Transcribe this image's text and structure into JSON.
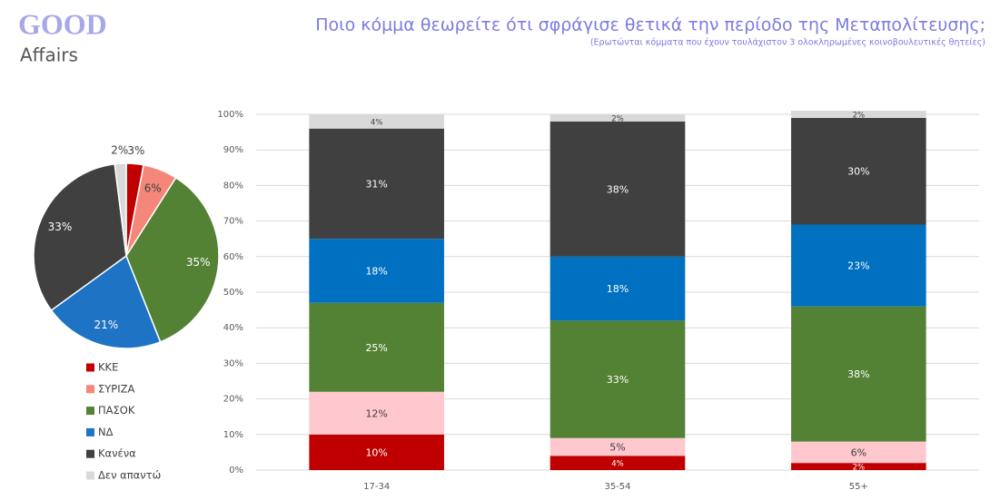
{
  "header": {
    "logo_top": "GOOD",
    "logo_bottom": "Affairs",
    "title": "Ποιο κόμμα θεωρείτε ότι σφράγισε θετικά την περίοδο της Μεταπολίτευσης;",
    "subtitle": "(Ερωτώνται κόμματα που έχουν τουλάχιστον 3 ολοκληρωμένες κοινοβουλευτικές θητείες)"
  },
  "chart_data": [
    {
      "type": "pie",
      "categories": [
        "ΚΚΕ",
        "ΣΥΡΙΖΑ",
        "ΠΑΣΟΚ",
        "ΝΔ",
        "Κανένα",
        "Δεν απαντώ"
      ],
      "values": [
        3,
        6,
        35,
        21,
        33,
        2
      ],
      "value_labels": [
        "3%",
        "6%",
        "35%",
        "21%",
        "33%",
        "2%"
      ],
      "colors": [
        "#c00000",
        "#f4877a",
        "#548235",
        "#1f73c4",
        "#404040",
        "#d9d9d9"
      ]
    },
    {
      "type": "stacked-bar",
      "categories": [
        "17-34",
        "35-54",
        "55+"
      ],
      "ylim": [
        0,
        100
      ],
      "yticks": [
        {
          "value": 0,
          "label": "0%"
        },
        {
          "value": 10,
          "label": "10%"
        },
        {
          "value": 20,
          "label": "20%"
        },
        {
          "value": 30,
          "label": "30%"
        },
        {
          "value": 40,
          "label": "40%"
        },
        {
          "value": 50,
          "label": "50%"
        },
        {
          "value": 60,
          "label": "60%"
        },
        {
          "value": 70,
          "label": "70%"
        },
        {
          "value": 80,
          "label": "80%"
        },
        {
          "value": 90,
          "label": "90%"
        },
        {
          "value": 100,
          "label": "100%"
        }
      ],
      "grid": true,
      "series": [
        {
          "color": "#c00000",
          "values": [
            10,
            4,
            2
          ],
          "value_labels": [
            "10%",
            "4%",
            "2%"
          ]
        },
        {
          "color": "#ffc7ce",
          "values": [
            12,
            5,
            6
          ],
          "value_labels": [
            "12%",
            "5%",
            "6%"
          ]
        },
        {
          "color": "#548235",
          "values": [
            25,
            33,
            38
          ],
          "value_labels": [
            "25%",
            "33%",
            "38%"
          ]
        },
        {
          "color": "#0070c0",
          "values": [
            18,
            18,
            23
          ],
          "value_labels": [
            "18%",
            "18%",
            "23%"
          ]
        },
        {
          "color": "#404040",
          "values": [
            31,
            38,
            30
          ],
          "value_labels": [
            "31%",
            "38%",
            "30%"
          ]
        },
        {
          "color": "#d9d9d9",
          "values": [
            4,
            2,
            2
          ],
          "value_labels": [
            "4%",
            "2%",
            "2%"
          ]
        }
      ]
    }
  ]
}
